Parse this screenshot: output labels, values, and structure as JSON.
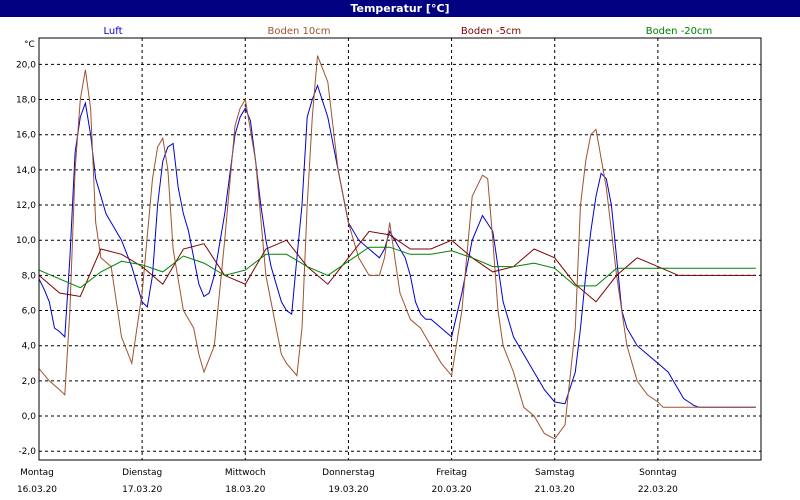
{
  "window": {
    "title": "Temperatur [°C]"
  },
  "chart_data": {
    "type": "line",
    "title": "Temperatur [°C]",
    "ylabel": "°C",
    "ylim": [
      -2.5,
      21.5
    ],
    "yticks": [
      "20,0",
      "18,0",
      "16,0",
      "14,0",
      "12,0",
      "10,0",
      "8,0",
      "6,0",
      "4,0",
      "2,0",
      "0,0",
      "-2,0"
    ],
    "ytick_values": [
      20,
      18,
      16,
      14,
      12,
      10,
      8,
      6,
      4,
      2,
      0,
      -2
    ],
    "xlim": [
      0,
      7
    ],
    "days": [
      {
        "weekday": "Montag",
        "date": "16.03.20"
      },
      {
        "weekday": "Dienstag",
        "date": "17.03.20"
      },
      {
        "weekday": "Mittwoch",
        "date": "18.03.20"
      },
      {
        "weekday": "Donnerstag",
        "date": "19.03.20"
      },
      {
        "weekday": "Freitag",
        "date": "20.03.20"
      },
      {
        "weekday": "Samstag",
        "date": "21.03.20"
      },
      {
        "weekday": "Sonntag",
        "date": "22.03.20"
      }
    ],
    "grid": true,
    "series": [
      {
        "name": "Luft",
        "color": "#0000cc",
        "x": [
          0.0,
          0.05,
          0.1,
          0.15,
          0.2,
          0.25,
          0.3,
          0.35,
          0.4,
          0.45,
          0.5,
          0.55,
          0.6,
          0.65,
          0.7,
          0.8,
          0.9,
          1.0,
          1.05,
          1.1,
          1.15,
          1.2,
          1.25,
          1.3,
          1.35,
          1.4,
          1.45,
          1.5,
          1.55,
          1.6,
          1.65,
          1.7,
          1.8,
          1.9,
          1.95,
          2.0,
          2.05,
          2.1,
          2.15,
          2.2,
          2.25,
          2.3,
          2.35,
          2.4,
          2.45,
          2.5,
          2.55,
          2.6,
          2.65,
          2.7,
          2.8,
          2.9,
          3.0,
          3.1,
          3.2,
          3.3,
          3.35,
          3.4,
          3.45,
          3.5,
          3.55,
          3.6,
          3.65,
          3.7,
          3.75,
          3.8,
          3.9,
          4.0,
          4.1,
          4.2,
          4.3,
          4.4,
          4.45,
          4.5,
          4.55,
          4.6,
          4.7,
          4.8,
          4.9,
          5.0,
          5.1,
          5.2,
          5.25,
          5.3,
          5.35,
          5.4,
          5.45,
          5.5,
          5.55,
          5.6,
          5.65,
          5.7,
          5.8,
          5.9,
          6.0,
          6.1,
          6.15,
          6.2,
          6.25,
          6.3,
          6.35,
          6.4,
          6.45,
          6.5,
          6.55,
          6.6,
          6.7,
          6.8,
          6.9,
          6.95
        ],
        "y": [
          7.8,
          7.2,
          6.5,
          5.0,
          4.8,
          4.5,
          9.0,
          15.0,
          17.0,
          17.8,
          16.0,
          13.5,
          12.5,
          11.5,
          11.0,
          10.0,
          8.5,
          6.5,
          6.2,
          8.0,
          12.0,
          14.5,
          15.3,
          15.5,
          13.0,
          11.5,
          10.5,
          9.0,
          7.5,
          6.8,
          7.0,
          8.0,
          11.5,
          16.0,
          17.0,
          17.5,
          16.8,
          14.5,
          12.0,
          10.0,
          8.5,
          7.5,
          6.5,
          6.0,
          5.8,
          9.0,
          12.0,
          17.0,
          18.0,
          18.8,
          17.0,
          14.0,
          11.0,
          10.0,
          9.5,
          9.0,
          9.5,
          10.5,
          10.0,
          9.5,
          9.0,
          8.0,
          6.5,
          5.8,
          5.5,
          5.5,
          5.0,
          4.5,
          7.0,
          10.0,
          11.4,
          10.5,
          8.5,
          6.5,
          5.5,
          4.5,
          3.5,
          2.5,
          1.5,
          0.8,
          0.7,
          2.5,
          5.0,
          8.0,
          10.5,
          12.5,
          13.8,
          13.5,
          12.0,
          9.0,
          6.0,
          5.0,
          4.0,
          3.5,
          3.0,
          2.5,
          2.0,
          1.5,
          1.0,
          0.8,
          0.6,
          0.5,
          0.5,
          0.5,
          0.5,
          0.5,
          0.5,
          0.5,
          0.5,
          0.5
        ]
      },
      {
        "name": "Boden 10cm",
        "color": "#a0522d",
        "x": [
          0.0,
          0.1,
          0.2,
          0.25,
          0.3,
          0.35,
          0.4,
          0.45,
          0.5,
          0.55,
          0.6,
          0.7,
          0.8,
          0.9,
          1.0,
          1.1,
          1.15,
          1.2,
          1.25,
          1.3,
          1.4,
          1.5,
          1.55,
          1.6,
          1.7,
          1.8,
          1.9,
          1.95,
          2.0,
          2.1,
          2.2,
          2.3,
          2.35,
          2.4,
          2.5,
          2.55,
          2.6,
          2.65,
          2.7,
          2.8,
          2.9,
          3.0,
          3.1,
          3.2,
          3.3,
          3.35,
          3.4,
          3.45,
          3.5,
          3.6,
          3.7,
          3.8,
          3.9,
          4.0,
          4.1,
          4.2,
          4.3,
          4.35,
          4.4,
          4.45,
          4.5,
          4.6,
          4.65,
          4.7,
          4.8,
          4.9,
          5.0,
          5.1,
          5.2,
          5.25,
          5.3,
          5.35,
          5.4,
          5.5,
          5.6,
          5.7,
          5.8,
          5.9,
          6.0,
          6.05,
          6.1,
          6.15,
          6.2,
          6.25,
          6.3,
          6.35,
          6.4,
          6.45,
          6.5,
          6.55,
          6.6,
          6.7,
          6.8,
          6.9,
          6.95
        ],
        "y": [
          2.7,
          2.0,
          1.5,
          1.2,
          6.0,
          14.0,
          18.0,
          19.7,
          17.5,
          11.0,
          9.0,
          8.5,
          4.5,
          3.0,
          7.0,
          13.5,
          15.3,
          15.8,
          14.0,
          9.5,
          6.0,
          5.0,
          3.5,
          2.5,
          4.0,
          10.0,
          16.5,
          17.5,
          18.0,
          14.5,
          8.0,
          5.0,
          3.5,
          3.0,
          2.3,
          5.0,
          12.0,
          17.0,
          20.5,
          19.0,
          14.0,
          11.0,
          9.0,
          8.0,
          8.0,
          9.0,
          11.0,
          9.0,
          7.0,
          5.5,
          5.0,
          4.0,
          3.0,
          2.3,
          6.0,
          12.5,
          13.7,
          13.5,
          10.0,
          6.0,
          4.0,
          2.5,
          1.5,
          0.5,
          0.0,
          -1.0,
          -1.3,
          -0.5,
          5.0,
          12.0,
          14.5,
          16.0,
          16.3,
          13.0,
          8.0,
          4.0,
          2.0,
          1.2,
          0.8,
          0.5,
          0.5,
          0.5,
          0.5,
          0.5,
          0.5,
          0.5,
          0.5,
          0.5,
          0.5,
          0.5,
          0.5,
          0.5,
          0.5,
          0.5,
          0.5
        ]
      },
      {
        "name": "Boden -5cm",
        "color": "#800000",
        "x": [
          0.0,
          0.2,
          0.4,
          0.6,
          0.8,
          1.0,
          1.2,
          1.4,
          1.6,
          1.8,
          2.0,
          2.2,
          2.4,
          2.6,
          2.8,
          3.0,
          3.2,
          3.4,
          3.6,
          3.8,
          4.0,
          4.2,
          4.4,
          4.6,
          4.8,
          5.0,
          5.2,
          5.4,
          5.6,
          5.8,
          6.0,
          6.2,
          6.4,
          6.6,
          6.8,
          6.95
        ],
        "y": [
          8.0,
          7.0,
          6.8,
          9.5,
          9.2,
          8.5,
          7.5,
          9.5,
          9.8,
          8.0,
          7.5,
          9.5,
          10.0,
          8.5,
          7.5,
          9.0,
          10.5,
          10.3,
          9.5,
          9.5,
          10.0,
          9.0,
          8.2,
          8.5,
          9.5,
          9.0,
          7.5,
          6.5,
          8.0,
          9.0,
          8.5,
          8.0,
          8.0,
          8.0,
          8.0,
          8.0
        ]
      },
      {
        "name": "Boden -20cm",
        "color": "#008000",
        "x": [
          0.0,
          0.2,
          0.4,
          0.6,
          0.8,
          1.0,
          1.2,
          1.4,
          1.6,
          1.8,
          2.0,
          2.2,
          2.4,
          2.6,
          2.8,
          3.0,
          3.2,
          3.4,
          3.6,
          3.8,
          4.0,
          4.2,
          4.4,
          4.6,
          4.8,
          5.0,
          5.2,
          5.4,
          5.6,
          5.8,
          6.0,
          6.2,
          6.4,
          6.6,
          6.8,
          6.95
        ],
        "y": [
          8.3,
          7.8,
          7.3,
          8.2,
          8.8,
          8.6,
          8.2,
          9.1,
          8.7,
          8.0,
          8.3,
          9.2,
          9.2,
          8.5,
          8.0,
          8.8,
          9.6,
          9.6,
          9.2,
          9.2,
          9.4,
          9.0,
          8.5,
          8.5,
          8.7,
          8.4,
          7.4,
          7.4,
          8.4,
          8.4,
          8.4,
          8.4,
          8.4,
          8.4,
          8.4,
          8.4
        ]
      }
    ]
  }
}
